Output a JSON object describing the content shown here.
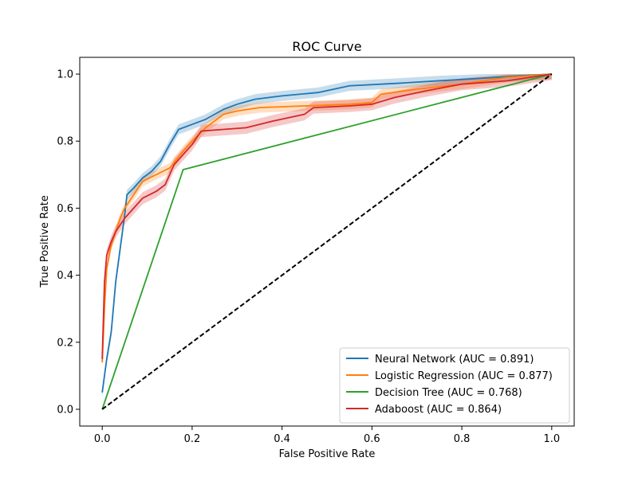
{
  "chart_data": {
    "type": "line",
    "title": "ROC Curve",
    "xlabel": "False Positive Rate",
    "ylabel": "True Positive Rate",
    "xlim": [
      -0.05,
      1.05
    ],
    "ylim": [
      -0.05,
      1.05
    ],
    "xticks": [
      0.0,
      0.2,
      0.4,
      0.6,
      0.8,
      1.0
    ],
    "yticks": [
      0.0,
      0.2,
      0.4,
      0.6,
      0.8,
      1.0
    ],
    "xtick_labels": [
      "0.0",
      "0.2",
      "0.4",
      "0.6",
      "0.8",
      "1.0"
    ],
    "ytick_labels": [
      "0.0",
      "0.2",
      "0.4",
      "0.6",
      "0.8",
      "1.0"
    ],
    "grid": false,
    "legend_position": "bottom-right",
    "series": [
      {
        "name": "Neural Network (AUC = 0.891)",
        "color": "#1f77b4",
        "band": 0.015,
        "points": [
          [
            0,
            0.05
          ],
          [
            0.005,
            0.1
          ],
          [
            0.01,
            0.15
          ],
          [
            0.02,
            0.23
          ],
          [
            0.03,
            0.38
          ],
          [
            0.04,
            0.48
          ],
          [
            0.05,
            0.58
          ],
          [
            0.055,
            0.64
          ],
          [
            0.07,
            0.66
          ],
          [
            0.09,
            0.69
          ],
          [
            0.11,
            0.71
          ],
          [
            0.13,
            0.74
          ],
          [
            0.15,
            0.79
          ],
          [
            0.17,
            0.835
          ],
          [
            0.2,
            0.85
          ],
          [
            0.23,
            0.865
          ],
          [
            0.27,
            0.895
          ],
          [
            0.3,
            0.91
          ],
          [
            0.34,
            0.925
          ],
          [
            0.4,
            0.935
          ],
          [
            0.48,
            0.945
          ],
          [
            0.55,
            0.965
          ],
          [
            0.65,
            0.972
          ],
          [
            0.75,
            0.98
          ],
          [
            0.85,
            0.988
          ],
          [
            0.93,
            0.995
          ],
          [
            1.0,
            1.0
          ]
        ]
      },
      {
        "name": "Logistic Regression (AUC = 0.877)",
        "color": "#ff7f0e",
        "band": 0.015,
        "points": [
          [
            0,
            0.14
          ],
          [
            0.005,
            0.3
          ],
          [
            0.01,
            0.42
          ],
          [
            0.02,
            0.49
          ],
          [
            0.03,
            0.53
          ],
          [
            0.04,
            0.57
          ],
          [
            0.05,
            0.6
          ],
          [
            0.07,
            0.64
          ],
          [
            0.09,
            0.68
          ],
          [
            0.12,
            0.7
          ],
          [
            0.15,
            0.72
          ],
          [
            0.18,
            0.77
          ],
          [
            0.2,
            0.8
          ],
          [
            0.23,
            0.84
          ],
          [
            0.27,
            0.88
          ],
          [
            0.3,
            0.89
          ],
          [
            0.35,
            0.9
          ],
          [
            0.45,
            0.905
          ],
          [
            0.55,
            0.91
          ],
          [
            0.6,
            0.915
          ],
          [
            0.62,
            0.94
          ],
          [
            0.7,
            0.955
          ],
          [
            0.8,
            0.97
          ],
          [
            0.9,
            0.99
          ],
          [
            1.0,
            1.0
          ]
        ]
      },
      {
        "name": "Decision Tree (AUC = 0.768)",
        "color": "#2ca02c",
        "band": 0,
        "points": [
          [
            0,
            0
          ],
          [
            0.18,
            0.715
          ],
          [
            1.0,
            1.0
          ]
        ]
      },
      {
        "name": "Adaboost (AUC = 0.864)",
        "color": "#d62728",
        "band": 0.018,
        "points": [
          [
            0,
            0.15
          ],
          [
            0.005,
            0.38
          ],
          [
            0.01,
            0.46
          ],
          [
            0.02,
            0.5
          ],
          [
            0.03,
            0.53
          ],
          [
            0.05,
            0.57
          ],
          [
            0.07,
            0.6
          ],
          [
            0.09,
            0.63
          ],
          [
            0.12,
            0.65
          ],
          [
            0.14,
            0.67
          ],
          [
            0.16,
            0.73
          ],
          [
            0.2,
            0.79
          ],
          [
            0.22,
            0.83
          ],
          [
            0.27,
            0.835
          ],
          [
            0.32,
            0.84
          ],
          [
            0.38,
            0.86
          ],
          [
            0.45,
            0.88
          ],
          [
            0.47,
            0.9
          ],
          [
            0.55,
            0.905
          ],
          [
            0.6,
            0.91
          ],
          [
            0.65,
            0.93
          ],
          [
            0.72,
            0.95
          ],
          [
            0.8,
            0.97
          ],
          [
            0.9,
            0.98
          ],
          [
            1.0,
            1.0
          ]
        ]
      },
      {
        "name": "",
        "color": "#000000",
        "dashed": true,
        "band": 0,
        "points": [
          [
            0,
            0
          ],
          [
            1,
            1
          ]
        ]
      }
    ]
  }
}
